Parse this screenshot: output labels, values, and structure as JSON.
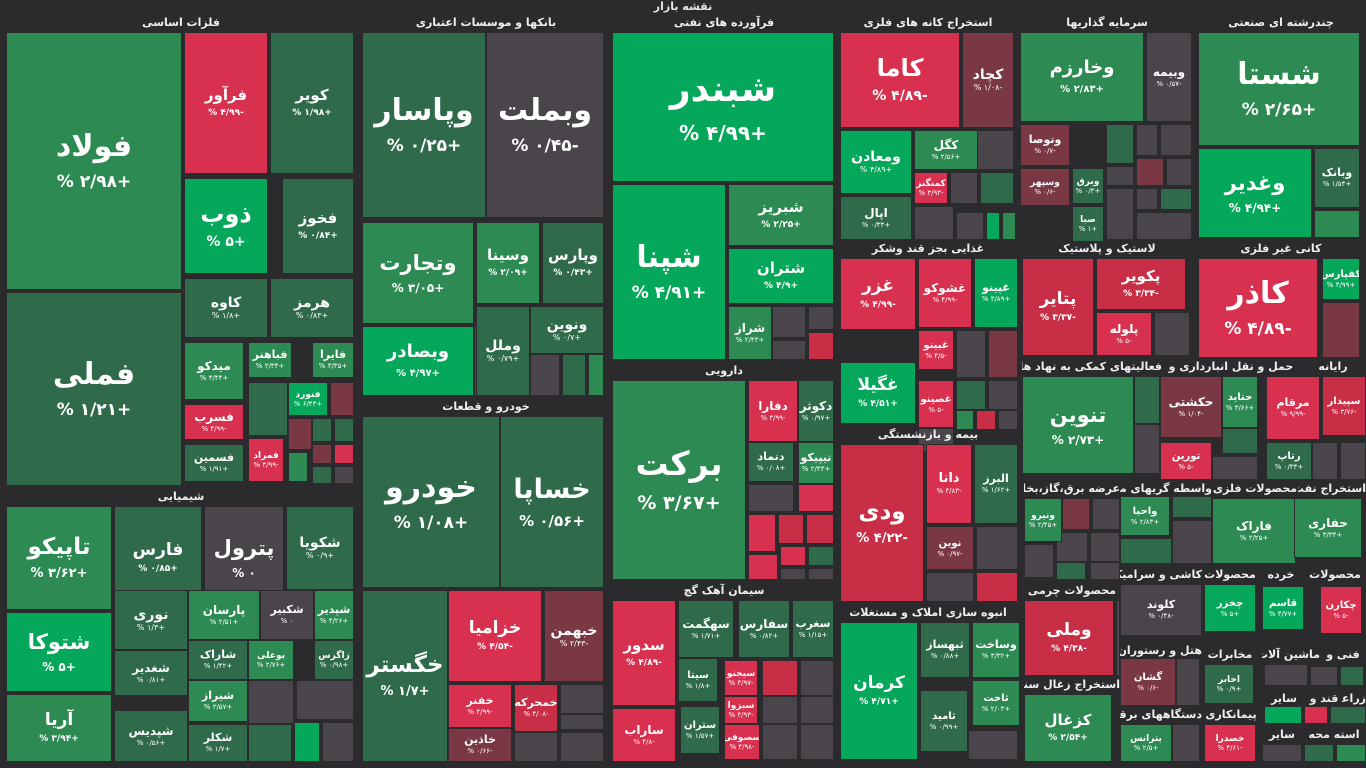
{
  "app": {
    "title": "نقشه بازار"
  },
  "colors": {
    "bg": "#2b2b2d",
    "up_strong": "#05a85a",
    "up": "#2c8a52",
    "up_weak": "#2f6b4a",
    "flat": "#4a454b",
    "down_weak": "#7a3845",
    "down": "#c82f46",
    "down_strong": "#d8304f"
  },
  "chart_data": {
    "type": "treemap",
    "title": "نقشه بازار",
    "sectors": [
      {
        "name": "فلزات اساسی",
        "tiles": [
          {
            "name": "فولاد",
            "change": "+۲/۹۸ %",
            "pct": 2.98
          },
          {
            "name": "فملی",
            "change": "+۱/۲۱ %",
            "pct": 1.21
          },
          {
            "name": "فرآور",
            "change": "-۴/۹۹ %",
            "pct": -4.99
          },
          {
            "name": "کویر",
            "change": "+۱/۹۸ %",
            "pct": 1.98
          },
          {
            "name": "ذوب",
            "change": "+۵ %",
            "pct": 5
          },
          {
            "name": "فخوز",
            "change": "+۰/۸۴ %",
            "pct": 0.84
          },
          {
            "name": "کاوه",
            "change": "+۱/۸ %",
            "pct": 1.8
          },
          {
            "name": "هرمز",
            "change": "+۰/۸۳ %",
            "pct": 0.83
          },
          {
            "name": "میدکو",
            "change": "+۴/۴۴ %",
            "pct": 4.44
          },
          {
            "name": "فباهنر",
            "change": "+۲/۳۴ %",
            "pct": 2.34
          },
          {
            "name": "فایرا",
            "change": "+۳/۳۵ %",
            "pct": 3.35
          },
          {
            "name": "فنورد",
            "change": "+۶/۴۳ %",
            "pct": 6.43
          },
          {
            "name": "فسرب",
            "change": "-۴/۹۹ %",
            "pct": -4.99
          },
          {
            "name": "فسمین",
            "change": "+۱/۹۱ %",
            "pct": 1.91
          },
          {
            "name": "فمراد",
            "change": "-۴/۹۹ %",
            "pct": -4.99
          }
        ]
      },
      {
        "name": "بانکها و موسسات اعتباری",
        "tiles": [
          {
            "name": "وپاسار",
            "change": "+۰/۲۵ %",
            "pct": 0.25
          },
          {
            "name": "وبملت",
            "change": "-۰/۴۵ %",
            "pct": -0.45
          },
          {
            "name": "وتجارت",
            "change": "+۳/۰۵ %",
            "pct": 3.05
          },
          {
            "name": "وسینا",
            "change": "+۲/۰۹ %",
            "pct": 2.09
          },
          {
            "name": "وپارس",
            "change": "+۰/۴۳ %",
            "pct": 0.43
          },
          {
            "name": "ونوین",
            "change": "+۰/۷ %",
            "pct": 0.7
          },
          {
            "name": "وبصادر",
            "change": "+۴/۹۷ %",
            "pct": 4.97
          },
          {
            "name": "وملل",
            "change": "+۰/۷۹ %",
            "pct": 0.79
          }
        ]
      },
      {
        "name": "فرآورده های نفتی",
        "tiles": [
          {
            "name": "شبندر",
            "change": "+۴/۹۹ %",
            "pct": 4.99
          },
          {
            "name": "شپنا",
            "change": "+۴/۹۱ %",
            "pct": 4.91
          },
          {
            "name": "شبریز",
            "change": "+۲/۲۵ %",
            "pct": 2.25
          },
          {
            "name": "شتران",
            "change": "+۴/۹ %",
            "pct": 4.9
          },
          {
            "name": "شراز",
            "change": "+۲/۴۳ %",
            "pct": 2.43
          }
        ]
      },
      {
        "name": "استخراج کانه های فلزی",
        "tiles": [
          {
            "name": "کاما",
            "change": "-۴/۸۹ %",
            "pct": -4.89
          },
          {
            "name": "کچاد",
            "change": "-۱/۰۸ %",
            "pct": -1.08
          },
          {
            "name": "ومعادن",
            "change": "+۴/۸۹ %",
            "pct": 4.89
          },
          {
            "name": "کگل",
            "change": "+۲/۵۶ %",
            "pct": 2.56
          },
          {
            "name": "کمنگنز",
            "change": "-۴/۹۳ %",
            "pct": -4.93
          },
          {
            "name": "اپال",
            "change": "+۰/۳۴ %",
            "pct": 0.34
          }
        ]
      },
      {
        "name": "سرمایه گذاریها",
        "tiles": [
          {
            "name": "وخارزم",
            "change": "+۲/۸۳ %",
            "pct": 2.83
          },
          {
            "name": "وبیمه",
            "change": "-۰/۵۷ %",
            "pct": -0.57
          },
          {
            "name": "وتوصا",
            "change": "-۰/۷ %",
            "pct": -0.7
          },
          {
            "name": "وسپهر",
            "change": "-۰/۶ %",
            "pct": -0.6
          },
          {
            "name": "وبرق",
            "change": "+۰/۳ %",
            "pct": 0.3
          },
          {
            "name": "صبا",
            "change": "+۱ %",
            "pct": 1
          }
        ]
      },
      {
        "name": "چندرشته ای صنعتی",
        "tiles": [
          {
            "name": "شستا",
            "change": "+۲/۶۵ %",
            "pct": 2.65
          },
          {
            "name": "وغدیر",
            "change": "+۴/۹۴ %",
            "pct": 4.94
          },
          {
            "name": "وبانک",
            "change": "+۱/۵۴ %",
            "pct": 1.54
          }
        ]
      },
      {
        "name": "خودرو و قطعات",
        "tiles": [
          {
            "name": "خودرو",
            "change": "+۱/۰۸ %",
            "pct": 1.08
          },
          {
            "name": "خساپا",
            "change": "+۰/۵۶ %",
            "pct": 0.56
          },
          {
            "name": "خگستر",
            "change": "+۱/۷ %",
            "pct": 1.7
          },
          {
            "name": "خزامیا",
            "change": "-۴/۵۴ %",
            "pct": -4.54
          },
          {
            "name": "خبهمن",
            "change": "-۲/۴۳ %",
            "pct": -2.43
          },
          {
            "name": "خفنر",
            "change": "-۴/۹۹ %",
            "pct": -4.99
          },
          {
            "name": "خمحرکه",
            "change": "-۴/۰۸ %",
            "pct": -4.08
          },
          {
            "name": "خاذین",
            "change": "-۰/۶۶ %",
            "pct": -0.66
          }
        ]
      },
      {
        "name": "دارویی",
        "tiles": [
          {
            "name": "برکت",
            "change": "+۳/۶۷ %",
            "pct": 3.67
          },
          {
            "name": "دفارا",
            "change": "-۴/۹۹ %",
            "pct": -4.99
          },
          {
            "name": "دکوثر",
            "change": "+۰/۹۷ %",
            "pct": 0.97
          },
          {
            "name": "دتماد",
            "change": "+۰/۰۸ %",
            "pct": 0.08
          },
          {
            "name": "تیپیکو",
            "change": "+۲/۴۳ %",
            "pct": 2.43
          }
        ]
      },
      {
        "name": "شیمیایی",
        "tiles": [
          {
            "name": "تاپیکو",
            "change": "+۳/۶۲ %",
            "pct": 3.62
          },
          {
            "name": "فارس",
            "change": "+۰/۸۵ %",
            "pct": 0.85
          },
          {
            "name": "پترول",
            "change": "۰ %",
            "pct": 0
          },
          {
            "name": "شکویا",
            "change": "+۰/۹ %",
            "pct": 0.9
          },
          {
            "name": "شتوکا",
            "change": "+۵ %",
            "pct": 5
          },
          {
            "name": "نوری",
            "change": "+۱/۳ %",
            "pct": 1.3
          },
          {
            "name": "پارسان",
            "change": "+۲/۵۱ %",
            "pct": 2.51
          },
          {
            "name": "شکبیر",
            "change": "۰ %",
            "pct": 0
          },
          {
            "name": "شپدیر",
            "change": "+۴/۲۶ %",
            "pct": 4.26
          },
          {
            "name": "شغدیر",
            "change": "+۰/۸۱ %",
            "pct": 0.81
          },
          {
            "name": "شاراک",
            "change": "+۱/۴۲ %",
            "pct": 1.42
          },
          {
            "name": "بوعلی",
            "change": "+۲/۷۶ %",
            "pct": 2.76
          },
          {
            "name": "زاگرس",
            "change": "+۰/۹۸ %",
            "pct": 0.98
          },
          {
            "name": "آریا",
            "change": "+۳/۹۴ %",
            "pct": 3.94
          },
          {
            "name": "شیراز",
            "change": "+۲/۵۷ %",
            "pct": 2.57
          },
          {
            "name": "شپدیس",
            "change": "+۰/۵۶ %",
            "pct": 0.56
          },
          {
            "name": "شکلر",
            "change": "+۱/۷ %",
            "pct": 1.7
          }
        ]
      },
      {
        "name": "سیمان آهک گچ",
        "tiles": [
          {
            "name": "سدور",
            "change": "-۴/۸۹ %",
            "pct": -4.89
          },
          {
            "name": "سهگمت",
            "change": "+۱/۷۱ %",
            "pct": 1.71
          },
          {
            "name": "سفارس",
            "change": "+۰/۸۲ %",
            "pct": 0.82
          },
          {
            "name": "سغرب",
            "change": "+۱/۱۵ %",
            "pct": 1.15
          },
          {
            "name": "سیتا",
            "change": "+۱/۸ %",
            "pct": 1.8
          },
          {
            "name": "سیجنو",
            "change": "-۴/۹۷ %",
            "pct": -4.97
          },
          {
            "name": "سبزوا",
            "change": "-۴/۹۳ %",
            "pct": -4.93
          },
          {
            "name": "ساراب",
            "change": "-۴/۸ %",
            "pct": -4.8
          },
          {
            "name": "ستران",
            "change": "+۱/۵۷ %",
            "pct": 1.57
          },
          {
            "name": "سصوفی",
            "change": "-۴/۹۸ %",
            "pct": -4.98
          }
        ]
      },
      {
        "name": "غذایی بجز قند وشکر",
        "tiles": [
          {
            "name": "غزر",
            "change": "-۴/۹۹ %",
            "pct": -4.99
          },
          {
            "name": "غشوکو",
            "change": "-۴/۹۹ %",
            "pct": -4.99
          },
          {
            "name": "غپینو",
            "change": "+۴/۸۹ %",
            "pct": 4.89
          },
          {
            "name": "غبینو",
            "change": "-۴/۵ %",
            "pct": -4.5
          },
          {
            "name": "غگیلا",
            "change": "+۴/۵۱ %",
            "pct": 4.51
          },
          {
            "name": "غصینو",
            "change": "-۵ %",
            "pct": -5
          }
        ]
      },
      {
        "name": "لاستیک و پلاستیک",
        "tiles": [
          {
            "name": "پتایر",
            "change": "-۳/۳۷ %",
            "pct": -3.37
          },
          {
            "name": "پکویر",
            "change": "-۳/۳۴ %",
            "pct": -3.34
          },
          {
            "name": "پلوله",
            "change": "-۵ %",
            "pct": -5
          }
        ]
      },
      {
        "name": "کانی غیر فلزی",
        "tiles": [
          {
            "name": "کاذر",
            "change": "-۴/۸۹ %",
            "pct": -4.89
          },
          {
            "name": "کفپارس",
            "change": "+۴/۹۹ %",
            "pct": 4.99
          }
        ]
      },
      {
        "name": "بیمه و بازنشستگی",
        "tiles": [
          {
            "name": "ودی",
            "change": "-۴/۲۲ %",
            "pct": -4.22
          },
          {
            "name": "دانا",
            "change": "-۴/۸۳ %",
            "pct": -4.83
          },
          {
            "name": "البرز",
            "change": "+۱/۶۲ %",
            "pct": 1.62
          },
          {
            "name": "نوین",
            "change": "-۰/۹۷ %",
            "pct": -0.97
          }
        ]
      },
      {
        "name": "انبوه سازی املاک و مستغلات",
        "tiles": [
          {
            "name": "کرمان",
            "change": "+۴/۷۱ %",
            "pct": 4.71
          },
          {
            "name": "ثبهساز",
            "change": "+۰/۸۸ %",
            "pct": 0.88
          },
          {
            "name": "وساخت",
            "change": "+۴/۳۲ %",
            "pct": 4.32
          },
          {
            "name": "ثاخت",
            "change": "+۲/۰۳ %",
            "pct": 2.03
          },
          {
            "name": "ثامید",
            "change": "+۰/۹۹ %",
            "pct": 0.99
          }
        ]
      },
      {
        "name": "فعالیتهای کمکی به نهاد های",
        "tiles": [
          {
            "name": "تنوین",
            "change": "+۲/۷۳ %",
            "pct": 2.73
          }
        ]
      },
      {
        "name": "حمل و نقل انبارداری و",
        "tiles": [
          {
            "name": "حکشتی",
            "change": "-۱/۰۴ %",
            "pct": -1.04
          },
          {
            "name": "حتاید",
            "change": "+۳/۶۶ %",
            "pct": 3.66
          },
          {
            "name": "تورین",
            "change": "-۵ %",
            "pct": -5
          }
        ]
      },
      {
        "name": "رایانه",
        "tiles": [
          {
            "name": "مرقام",
            "change": "-۹/۹۹ %",
            "pct": -9.99
          },
          {
            "name": "سپیدار",
            "change": "-۳/۷۶ %",
            "pct": -3.76
          },
          {
            "name": "رتاپ",
            "change": "+۰/۳۳ %",
            "pct": 0.33
          }
        ]
      },
      {
        "name": "عرضه برق،گاز،بخار و",
        "tiles": [
          {
            "name": "ونیرو",
            "change": "+۲/۴۵ %",
            "pct": 2.45
          }
        ]
      },
      {
        "name": "واسطه گریهای مالی",
        "tiles": [
          {
            "name": "واحیا",
            "change": "+۲/۸۳ %",
            "pct": 2.83
          }
        ]
      },
      {
        "name": "محصولات فلزی",
        "tiles": [
          {
            "name": "فاراک",
            "change": "+۲/۲۵ %",
            "pct": 2.25
          }
        ]
      },
      {
        "name": "استخراج نفت",
        "tiles": [
          {
            "name": "حفاری",
            "change": "+۳/۳۴ %",
            "pct": 3.34
          }
        ]
      },
      {
        "name": "محصولات چرمی",
        "tiles": [
          {
            "name": "وملی",
            "change": "-۴/۳۸ %",
            "pct": -4.38
          }
        ]
      },
      {
        "name": "کاشی و سرامیک",
        "tiles": [
          {
            "name": "کلوند",
            "change": "-۰/۴۸ %",
            "pct": -0.48
          }
        ]
      },
      {
        "name": "محصولات",
        "tiles": [
          {
            "name": "چخزر",
            "change": "+۵ %",
            "pct": 5
          }
        ]
      },
      {
        "name": "خرده",
        "tiles": [
          {
            "name": "قاسم",
            "change": "+۴/۷۷ %",
            "pct": 4.77
          }
        ]
      },
      {
        "name": "محصولات ",
        "tiles": [
          {
            "name": "چکارن",
            "change": "-۵ %",
            "pct": -5
          }
        ]
      },
      {
        "name": "استخراج زغال سنگ",
        "tiles": [
          {
            "name": "کزغال",
            "change": "+۲/۵۴ %",
            "pct": 2.54
          }
        ]
      },
      {
        "name": "هتل و رستوران",
        "tiles": [
          {
            "name": "گشان",
            "change": "-۰/۶ %",
            "pct": -0.6
          }
        ]
      },
      {
        "name": "مخابرات",
        "tiles": [
          {
            "name": "اخابر",
            "change": "+۰/۹ %",
            "pct": 0.9
          }
        ]
      },
      {
        "name": "ماشین آلات",
        "tiles": []
      },
      {
        "name": "فنی و",
        "tiles": []
      },
      {
        "name": "دستگاههای برقی",
        "tiles": [
          {
            "name": "بترانس",
            "change": "+۲/۵ %",
            "pct": 2.5
          }
        ]
      },
      {
        "name": "پیمانکاری",
        "tiles": [
          {
            "name": "خصدرا",
            "change": "-۴/۶۱ %",
            "pct": -4.61
          }
        ]
      },
      {
        "name": "سایر",
        "tiles": []
      },
      {
        "name": "قند و",
        "tiles": []
      },
      {
        "name": "زراعت",
        "tiles": []
      },
      {
        "name": "سایر ",
        "tiles": []
      },
      {
        "name": "استه محه",
        "tiles": []
      }
    ]
  }
}
